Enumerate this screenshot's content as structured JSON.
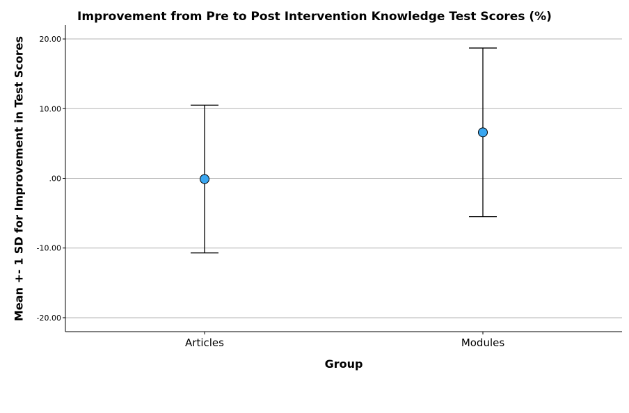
{
  "chart_data": {
    "type": "scatter",
    "title": "Improvement from Pre to Post Intervention Knowledge Test Scores (%)",
    "xlabel": "Group",
    "ylabel": "Mean +- 1 SD for Improvement in Test Scores",
    "categories": [
      "Articles",
      "Modules"
    ],
    "series": [
      {
        "points": [
          {
            "category": "Articles",
            "mean": -0.1,
            "lower": -10.7,
            "upper": 10.5
          },
          {
            "category": "Modules",
            "mean": 6.6,
            "lower": -5.5,
            "upper": 18.7
          }
        ]
      }
    ],
    "ylim": [
      -22.0,
      22.0
    ],
    "yticks": [
      20,
      10,
      0,
      -10,
      -20
    ],
    "ytick_labels": [
      "20.00",
      "10.00",
      ".00",
      "-10.00",
      "-20.00"
    ],
    "grid": true,
    "marker_color": "#3aa6f0",
    "error_bar_color": "#000000"
  }
}
